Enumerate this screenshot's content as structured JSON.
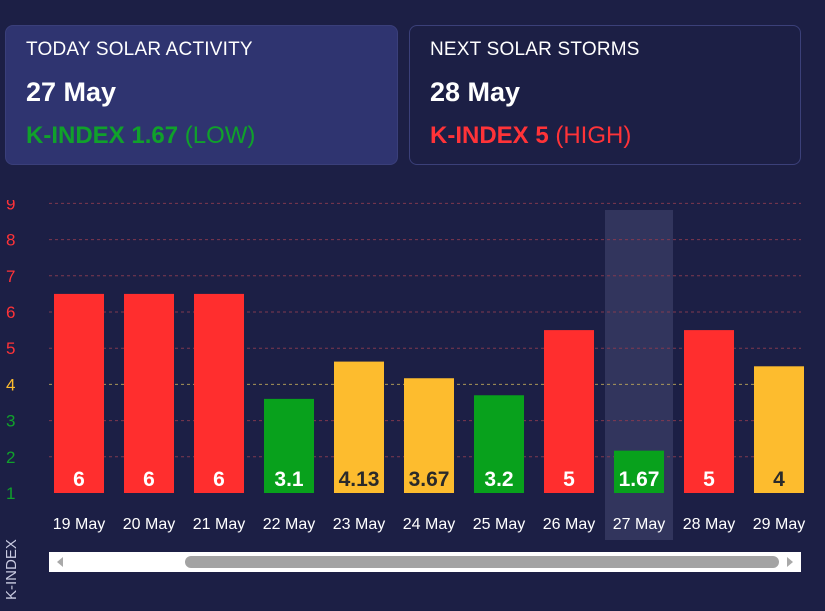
{
  "today": {
    "title": "TODAY SOLAR ACTIVITY",
    "date": "27 May",
    "k_label": "K-INDEX 1.67",
    "k_level": "(LOW)",
    "color": "#10a12b"
  },
  "next": {
    "title": "NEXT SOLAR STORMS",
    "date": "28 May",
    "k_label": "K-INDEX 5",
    "k_level": "(HIGH)",
    "color": "#ff3338"
  },
  "axis": {
    "ylabel": "K-INDEX"
  },
  "colors": {
    "low": "#08a11c",
    "medium": "#fdbc2e",
    "high": "#ff2e2e",
    "background": "#1c1f45",
    "highlight": "#3a3e66"
  },
  "chart_data": {
    "type": "bar",
    "title": "",
    "xlabel": "",
    "ylabel": "K-INDEX",
    "categories": [
      "19 May",
      "20 May",
      "21 May",
      "22 May",
      "23 May",
      "24 May",
      "25 May",
      "26 May",
      "27 May",
      "28 May",
      "29 May"
    ],
    "values": [
      6,
      6,
      6,
      3.1,
      4.13,
      3.67,
      3.2,
      5,
      1.67,
      5,
      4
    ],
    "value_labels": [
      "6",
      "6",
      "6",
      "3.1",
      "4.13",
      "3.67",
      "3.2",
      "5",
      "1.67",
      "5",
      "4"
    ],
    "bar_levels": [
      "high",
      "high",
      "high",
      "low",
      "medium",
      "medium",
      "low",
      "high",
      "low",
      "high",
      "medium"
    ],
    "highlighted_category": "27 May",
    "yticks": [
      "1",
      "2",
      "3",
      "4",
      "5",
      "6",
      "7",
      "8",
      "9"
    ],
    "ytick_colors": [
      "#10a12b",
      "#10a12b",
      "#10a12b",
      "#fdbc2e",
      "#ff3338",
      "#ff3338",
      "#ff3338",
      "#ff3338",
      "#ff3338"
    ],
    "ylim": [
      1,
      9
    ],
    "grid": true,
    "legend": "none"
  }
}
